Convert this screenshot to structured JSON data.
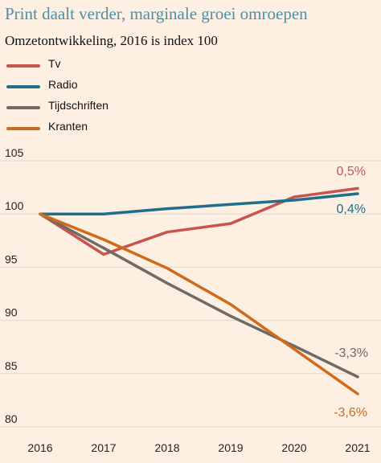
{
  "chart_data": {
    "type": "line",
    "title": "Print daalt verder, marginale groei omroepen",
    "subtitle": "Omzetontwikkeling, 2016 is index 100",
    "x": [
      "2016",
      "2017",
      "2018",
      "2019",
      "2020",
      "2021"
    ],
    "ylim": [
      80,
      105
    ],
    "yticks": [
      80,
      85,
      90,
      95,
      100,
      105
    ],
    "grid": true,
    "legend_placement": "top-left",
    "series": [
      {
        "name": "Tv",
        "color": "#c9534f",
        "values": [
          100,
          96.2,
          98.3,
          99.1,
          101.6,
          102.4
        ],
        "end_label": "0,5%"
      },
      {
        "name": "Radio",
        "color": "#1f6e8c",
        "values": [
          100,
          100,
          100.5,
          100.9,
          101.3,
          101.9
        ],
        "end_label": "0,4%"
      },
      {
        "name": "Tijdschriften",
        "color": "#6f6a66",
        "values": [
          100,
          96.8,
          93.5,
          90.4,
          87.6,
          84.7
        ],
        "end_label": "-3,3%"
      },
      {
        "name": "Kranten",
        "color": "#d06a1a",
        "values": [
          100,
          97.6,
          94.9,
          91.5,
          87.3,
          83.1
        ],
        "end_label": "-3,6%"
      }
    ]
  }
}
